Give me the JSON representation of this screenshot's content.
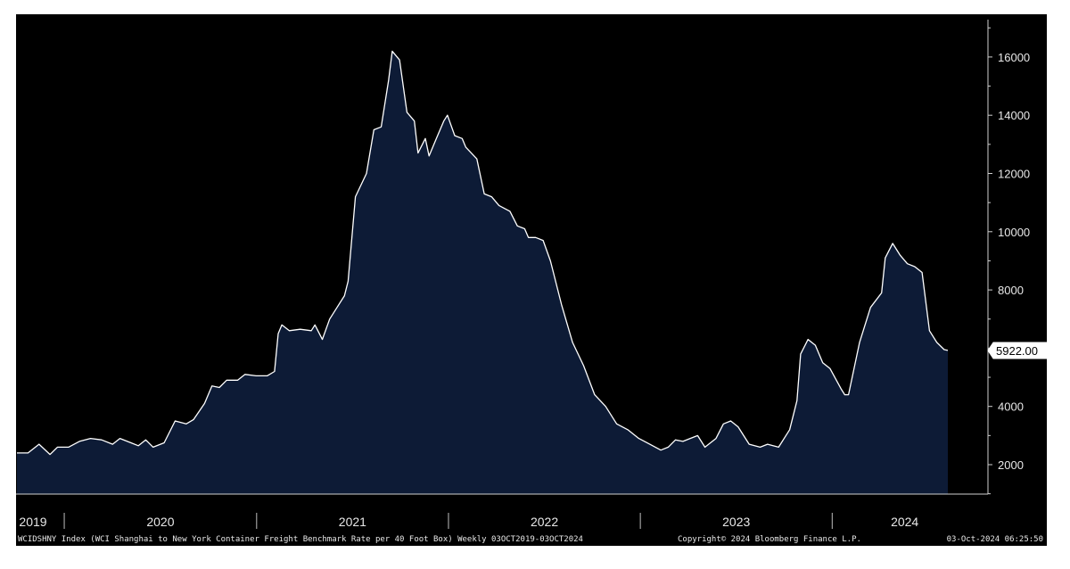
{
  "chart_data": {
    "type": "area",
    "title": "",
    "xlabel": "",
    "ylabel": "",
    "ylim": [
      1000,
      17000
    ],
    "y_ticks": [
      "2000",
      "4000",
      "6000",
      "8000",
      "10000",
      "12000",
      "14000",
      "16000"
    ],
    "x_range": [
      "2019-10-03",
      "2024-10-03"
    ],
    "years": [
      "2019",
      "2020",
      "2021",
      "2022",
      "2023",
      "2024"
    ],
    "last_value_label": "5922.00",
    "grid": false,
    "series": [
      {
        "color": "#ffffff",
        "fill": "#0d1b36",
        "points": [
          [
            "2019-10-03",
            2400
          ],
          [
            "2019-10-24",
            2400
          ],
          [
            "2019-11-14",
            2700
          ],
          [
            "2019-12-05",
            2350
          ],
          [
            "2019-12-19",
            2600
          ],
          [
            "2020-01-09",
            2600
          ],
          [
            "2020-01-30",
            2800
          ],
          [
            "2020-02-20",
            2900
          ],
          [
            "2020-03-12",
            2850
          ],
          [
            "2020-04-02",
            2700
          ],
          [
            "2020-04-16",
            2900
          ],
          [
            "2020-05-07",
            2750
          ],
          [
            "2020-05-21",
            2650
          ],
          [
            "2020-06-04",
            2850
          ],
          [
            "2020-06-18",
            2600
          ],
          [
            "2020-07-09",
            2750
          ],
          [
            "2020-07-30",
            3500
          ],
          [
            "2020-08-20",
            3400
          ],
          [
            "2020-09-03",
            3550
          ],
          [
            "2020-09-24",
            4100
          ],
          [
            "2020-10-08",
            4700
          ],
          [
            "2020-10-22",
            4650
          ],
          [
            "2020-11-05",
            4900
          ],
          [
            "2020-11-26",
            4900
          ],
          [
            "2020-12-10",
            5100
          ],
          [
            "2020-12-31",
            5050
          ],
          [
            "2021-01-21",
            5050
          ],
          [
            "2021-02-04",
            5200
          ],
          [
            "2021-02-11",
            6500
          ],
          [
            "2021-02-18",
            6800
          ],
          [
            "2021-03-04",
            6600
          ],
          [
            "2021-03-25",
            6650
          ],
          [
            "2021-04-15",
            6600
          ],
          [
            "2021-04-22",
            6800
          ],
          [
            "2021-05-06",
            6300
          ],
          [
            "2021-05-20",
            7000
          ],
          [
            "2021-06-03",
            7400
          ],
          [
            "2021-06-17",
            7800
          ],
          [
            "2021-06-24",
            8300
          ],
          [
            "2021-07-08",
            11200
          ],
          [
            "2021-07-29",
            12000
          ],
          [
            "2021-08-12",
            13500
          ],
          [
            "2021-08-26",
            13600
          ],
          [
            "2021-09-09",
            15200
          ],
          [
            "2021-09-16",
            16200
          ],
          [
            "2021-09-30",
            15900
          ],
          [
            "2021-10-14",
            14100
          ],
          [
            "2021-10-28",
            13800
          ],
          [
            "2021-11-04",
            12700
          ],
          [
            "2021-11-18",
            13200
          ],
          [
            "2021-11-25",
            12600
          ],
          [
            "2021-12-09",
            13200
          ],
          [
            "2021-12-23",
            13800
          ],
          [
            "2021-12-30",
            14000
          ],
          [
            "2022-01-13",
            13300
          ],
          [
            "2022-01-27",
            13200
          ],
          [
            "2022-02-03",
            12900
          ],
          [
            "2022-02-24",
            12500
          ],
          [
            "2022-03-10",
            11300
          ],
          [
            "2022-03-24",
            11200
          ],
          [
            "2022-04-07",
            10900
          ],
          [
            "2022-04-28",
            10700
          ],
          [
            "2022-05-12",
            10200
          ],
          [
            "2022-05-26",
            10100
          ],
          [
            "2022-06-02",
            9800
          ],
          [
            "2022-06-16",
            9800
          ],
          [
            "2022-06-30",
            9700
          ],
          [
            "2022-07-14",
            9000
          ],
          [
            "2022-08-04",
            7500
          ],
          [
            "2022-08-25",
            6200
          ],
          [
            "2022-09-15",
            5400
          ],
          [
            "2022-10-06",
            4400
          ],
          [
            "2022-10-27",
            4000
          ],
          [
            "2022-11-17",
            3400
          ],
          [
            "2022-12-08",
            3200
          ],
          [
            "2022-12-29",
            2900
          ],
          [
            "2023-01-19",
            2700
          ],
          [
            "2023-02-09",
            2500
          ],
          [
            "2023-02-23",
            2600
          ],
          [
            "2023-03-09",
            2850
          ],
          [
            "2023-03-23",
            2800
          ],
          [
            "2023-04-06",
            2900
          ],
          [
            "2023-04-20",
            3000
          ],
          [
            "2023-05-04",
            2600
          ],
          [
            "2023-05-25",
            2900
          ],
          [
            "2023-06-08",
            3400
          ],
          [
            "2023-06-22",
            3500
          ],
          [
            "2023-07-06",
            3300
          ],
          [
            "2023-07-27",
            2700
          ],
          [
            "2023-08-17",
            2600
          ],
          [
            "2023-08-31",
            2700
          ],
          [
            "2023-09-21",
            2600
          ],
          [
            "2023-10-12",
            3200
          ],
          [
            "2023-10-26",
            4200
          ],
          [
            "2023-11-02",
            5800
          ],
          [
            "2023-11-16",
            6300
          ],
          [
            "2023-11-30",
            6100
          ],
          [
            "2023-12-14",
            5500
          ],
          [
            "2023-12-28",
            5300
          ],
          [
            "2024-01-18",
            4600
          ],
          [
            "2024-01-25",
            4400
          ],
          [
            "2024-02-01",
            4400
          ],
          [
            "2024-02-22",
            6200
          ],
          [
            "2024-03-14",
            7400
          ],
          [
            "2024-04-04",
            7900
          ],
          [
            "2024-04-11",
            9100
          ],
          [
            "2024-04-25",
            9600
          ],
          [
            "2024-05-09",
            9200
          ],
          [
            "2024-05-23",
            8900
          ],
          [
            "2024-06-06",
            8800
          ],
          [
            "2024-06-20",
            8600
          ],
          [
            "2024-07-04",
            6600
          ],
          [
            "2024-07-18",
            6200
          ],
          [
            "2024-08-01",
            5950
          ],
          [
            "2024-08-08",
            5922
          ]
        ]
      }
    ],
    "footer_left": "WCIDSHNY Index (WCI Shanghai to New York Container Freight Benchmark Rate per 40 Foot Box)  Weekly 03OCT2019-03OCT2024",
    "footer_center": "Copyright© 2024 Bloomberg Finance L.P.",
    "footer_right": "03-Oct-2024 06:25:50"
  }
}
